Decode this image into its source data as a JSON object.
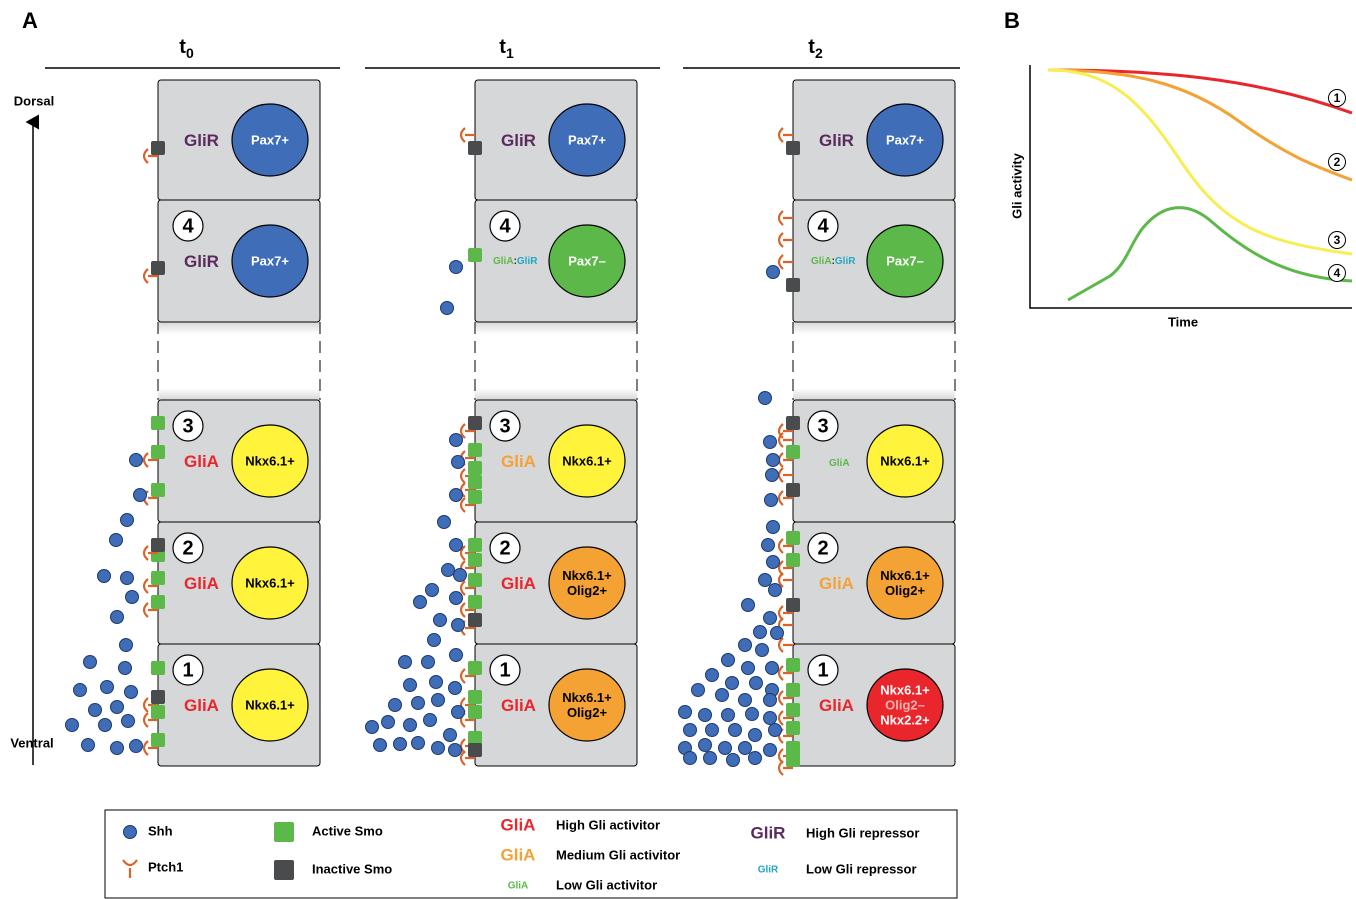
{
  "panel_a": {
    "label": "A",
    "axis": {
      "top": "Dorsal",
      "bottom": "Ventral"
    },
    "columns": [
      {
        "time": {
          "symbol": "t",
          "index": "0"
        },
        "cells": [
          {
            "gli": [
              {
                "text": "GliR",
                "color": "#5b2a5e"
              }
            ],
            "circle": {
              "fill": "#3f6db8",
              "lines": [
                "Pax7+"
              ]
            }
          },
          {
            "number": "4",
            "gli": [
              {
                "text": "GliR",
                "color": "#5b2a5e"
              }
            ],
            "circle": {
              "fill": "#3f6db8",
              "lines": [
                "Pax7+"
              ]
            }
          },
          {
            "number": "3",
            "gli": [
              {
                "text": "GliA",
                "color": "#e8262b"
              }
            ],
            "circle": {
              "fill": "#fff33b",
              "lines": [
                "Nkx6.1+"
              ]
            }
          },
          {
            "number": "2",
            "gli": [
              {
                "text": "GliA",
                "color": "#e8262b"
              }
            ],
            "circle": {
              "fill": "#fff33b",
              "lines": [
                "Nkx6.1+"
              ]
            }
          },
          {
            "number": "1",
            "gli": [
              {
                "text": "GliA",
                "color": "#e8262b"
              }
            ],
            "circle": {
              "fill": "#fff33b",
              "lines": [
                "Nkx6.1+"
              ]
            }
          }
        ]
      },
      {
        "time": {
          "symbol": "t",
          "index": "1"
        },
        "cells": [
          {
            "gli": [
              {
                "text": "GliR",
                "color": "#5b2a5e"
              }
            ],
            "circle": {
              "fill": "#3f6db8",
              "lines": [
                "Pax7+"
              ]
            }
          },
          {
            "number": "4",
            "gli": [
              {
                "text": "GliA",
                "color": "#5cb848"
              },
              {
                "text": ":",
                "color": "#222222"
              },
              {
                "text": "GliR",
                "color": "#22a8c4"
              }
            ],
            "circle": {
              "fill": "#5cb848",
              "lines": [
                "Pax7–"
              ]
            }
          },
          {
            "number": "3",
            "gli": [
              {
                "text": "GliA",
                "color": "#f5a235"
              }
            ],
            "circle": {
              "fill": "#fff33b",
              "lines": [
                "Nkx6.1+"
              ]
            }
          },
          {
            "number": "2",
            "gli": [
              {
                "text": "GliA",
                "color": "#e8262b"
              }
            ],
            "circle": {
              "fill": "#f5a235",
              "lines": [
                "Nkx6.1+",
                "Olig2+"
              ]
            }
          },
          {
            "number": "1",
            "gli": [
              {
                "text": "GliA",
                "color": "#e8262b"
              }
            ],
            "circle": {
              "fill": "#f5a235",
              "lines": [
                "Nkx6.1+",
                "Olig2+"
              ]
            }
          }
        ]
      },
      {
        "time": {
          "symbol": "t",
          "index": "2"
        },
        "cells": [
          {
            "gli": [
              {
                "text": "GliR",
                "color": "#5b2a5e"
              }
            ],
            "circle": {
              "fill": "#3f6db8",
              "lines": [
                "Pax7+"
              ]
            }
          },
          {
            "number": "4",
            "gli": [
              {
                "text": "GliA",
                "color": "#5cb848"
              },
              {
                "text": ":",
                "color": "#222222"
              },
              {
                "text": "GliR",
                "color": "#22a8c4"
              }
            ],
            "circle": {
              "fill": "#5cb848",
              "lines": [
                "Pax7–"
              ]
            }
          },
          {
            "number": "3",
            "gli": [
              {
                "text": "GliA",
                "color": "#5cb848"
              }
            ],
            "circle": {
              "fill": "#fff33b",
              "lines": [
                "Nkx6.1+"
              ]
            }
          },
          {
            "number": "2",
            "gli": [
              {
                "text": "GliA",
                "color": "#f5a235"
              }
            ],
            "circle": {
              "fill": "#f5a235",
              "lines": [
                "Nkx6.1+",
                "Olig2+"
              ]
            }
          },
          {
            "number": "1",
            "gli": [
              {
                "text": "GliA",
                "color": "#e8262b"
              }
            ],
            "circle": {
              "fill": "#e8262b",
              "lines": [
                "Nkx6.1+",
                {
                  "text": "Olig2–",
                  "color": "#f4b3ac"
                },
                "Nkx2.2+"
              ]
            }
          }
        ]
      }
    ]
  },
  "legend": {
    "items": [
      {
        "text": "Shh"
      },
      {
        "text": "Ptch1"
      },
      {
        "text": "Active Smo"
      },
      {
        "text": "Inactive Smo"
      },
      {
        "symbol": "GliA",
        "color": "#e8262b",
        "text": "High Gli activitor"
      },
      {
        "symbol": "GliA",
        "color": "#f5a235",
        "text": "Medium Gli activitor"
      },
      {
        "symbol": "GliA",
        "color": "#5cb848",
        "text": "Low Gli activitor"
      },
      {
        "symbol": "GliR",
        "color": "#5b2a5e",
        "text": "High Gli repressor"
      },
      {
        "symbol": "GliR",
        "color": "#22a8c4",
        "text": "Low Gli repressor"
      }
    ]
  },
  "panel_b": {
    "label": "B",
    "y_label": "Gli activity",
    "x_label": "Time",
    "curve_labels": [
      "1",
      "2",
      "3",
      "4"
    ]
  }
}
